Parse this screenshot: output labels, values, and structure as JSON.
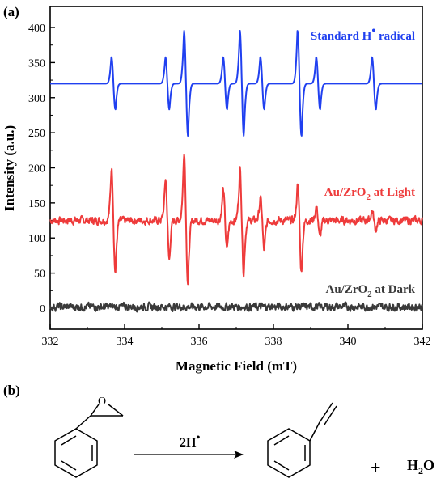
{
  "panel_a_label": "(a)",
  "panel_b_label": "(b)",
  "chart_data": {
    "type": "line",
    "xlabel": "Magnetic Field (mT)",
    "ylabel": "Intensity (a.u.)",
    "xlim": [
      332,
      342
    ],
    "ylim": [
      -30,
      430
    ],
    "x_ticks": [
      332,
      334,
      336,
      338,
      340,
      342
    ],
    "y_ticks": [
      0,
      50,
      100,
      150,
      200,
      250,
      300,
      350,
      400
    ],
    "grid": false,
    "legend": "inline labels at right of each trace",
    "series": [
      {
        "label": "Standard H• radical",
        "label_main": "Standard H",
        "label_sup": "•",
        "label_rest": " radical",
        "color": "#2040f0",
        "baseline": 320,
        "peaks": [
          {
            "x": 333.7,
            "max": 358,
            "min": 283
          },
          {
            "x": 335.15,
            "max": 358,
            "min": 283
          },
          {
            "x": 335.65,
            "max": 396,
            "min": 245
          },
          {
            "x": 336.7,
            "max": 358,
            "min": 283
          },
          {
            "x": 337.15,
            "max": 396,
            "min": 245
          },
          {
            "x": 337.7,
            "max": 358,
            "min": 283
          },
          {
            "x": 338.7,
            "max": 396,
            "min": 245
          },
          {
            "x": 339.2,
            "max": 358,
            "min": 283
          },
          {
            "x": 340.7,
            "max": 358,
            "min": 283
          }
        ]
      },
      {
        "label": "Au/ZrO2 at Light",
        "label_main": "Au/ZrO",
        "label_sub": "2",
        "label_rest": " at Light",
        "color": "#ee3b3b",
        "baseline": 125,
        "peaks": [
          {
            "x": 333.7,
            "max": 200,
            "min": 51
          },
          {
            "x": 335.15,
            "max": 185,
            "min": 68
          },
          {
            "x": 335.65,
            "max": 226,
            "min": 33
          },
          {
            "x": 336.7,
            "max": 169,
            "min": 83
          },
          {
            "x": 337.15,
            "max": 199,
            "min": 49
          },
          {
            "x": 337.7,
            "max": 156,
            "min": 82
          },
          {
            "x": 338.7,
            "max": 174,
            "min": 50
          },
          {
            "x": 339.2,
            "max": 144,
            "min": 100
          },
          {
            "x": 340.7,
            "max": 139,
            "min": 112
          }
        ]
      },
      {
        "label": "Au/ZrO2 at Dark",
        "label_main": "Au/ZrO",
        "label_sub": "2",
        "label_rest": " at Dark",
        "color": "#3a3a3a",
        "baseline": 2,
        "peaks": []
      }
    ]
  },
  "reaction": {
    "reagent_label": "2H",
    "reagent_sup": "•",
    "plus": "+",
    "water": "H",
    "water_sub": "2",
    "water_rest": "O",
    "epoxide_oxygen": "O"
  }
}
